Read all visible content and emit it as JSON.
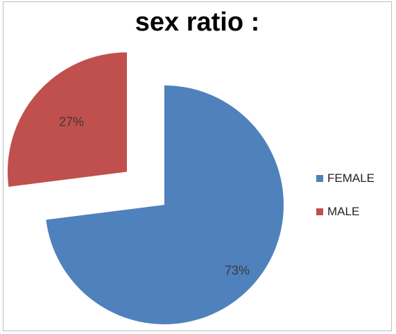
{
  "chart_data": {
    "type": "pie",
    "title": "sex ratio :",
    "categories": [
      "FEMALE",
      "MALE"
    ],
    "values": [
      73,
      27
    ],
    "labels": [
      "73%",
      "27%"
    ],
    "colors": [
      "#4f81bd",
      "#c0504d"
    ],
    "exploded": "MALE",
    "legend_position": "right"
  }
}
